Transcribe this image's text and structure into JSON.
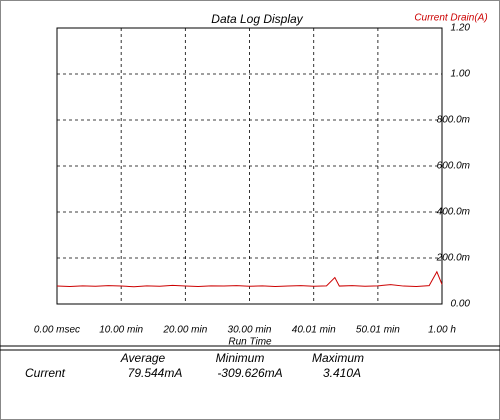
{
  "chart_data": {
    "type": "line",
    "title": "Data Log Display",
    "x_label": "Run Time",
    "y_label": "Current Drain(A)",
    "x": [
      0,
      2,
      4,
      6,
      8,
      10,
      12,
      14,
      16,
      18,
      20,
      22,
      24,
      26,
      28,
      30,
      32,
      34,
      36,
      38,
      40,
      42,
      43.3,
      44,
      46,
      48,
      50,
      52,
      54,
      56,
      58,
      59.2,
      60
    ],
    "series": [
      {
        "name": "Current",
        "color": "#cc0000",
        "values": [
          0.078,
          0.076,
          0.079,
          0.077,
          0.08,
          0.078,
          0.075,
          0.079,
          0.077,
          0.081,
          0.078,
          0.076,
          0.079,
          0.078,
          0.08,
          0.077,
          0.079,
          0.076,
          0.078,
          0.08,
          0.077,
          0.079,
          0.115,
          0.078,
          0.08,
          0.077,
          0.079,
          0.084,
          0.078,
          0.076,
          0.08,
          0.14,
          0.085
        ]
      }
    ],
    "xlim": [
      0,
      60
    ],
    "xticks": [
      {
        "value": 0,
        "label": "0.00 msec"
      },
      {
        "value": 10,
        "label": "10.00 min"
      },
      {
        "value": 20,
        "label": "20.00 min"
      },
      {
        "value": 30,
        "label": "30.00 min"
      },
      {
        "value": 40.01,
        "label": "40.01 min"
      },
      {
        "value": 50.01,
        "label": "50.01 min"
      },
      {
        "value": 60,
        "label": "1.00 h"
      }
    ],
    "ylim": [
      0,
      1.2
    ],
    "yticks": [
      {
        "value": 0,
        "label": "0.00"
      },
      {
        "value": 0.2,
        "label": "200.0m"
      },
      {
        "value": 0.4,
        "label": "400.0m"
      },
      {
        "value": 0.6,
        "label": "600.0m"
      },
      {
        "value": 0.8,
        "label": "800.0m"
      },
      {
        "value": 1,
        "label": "1.00"
      },
      {
        "value": 1.2,
        "label": "1.20"
      }
    ],
    "grid": true
  },
  "stats": {
    "columns": [
      "Average",
      "Minimum",
      "Maximum"
    ],
    "rows": [
      {
        "label": "Current",
        "values": [
          "79.544mA",
          "-309.626mA",
          "3.410A"
        ]
      }
    ]
  }
}
